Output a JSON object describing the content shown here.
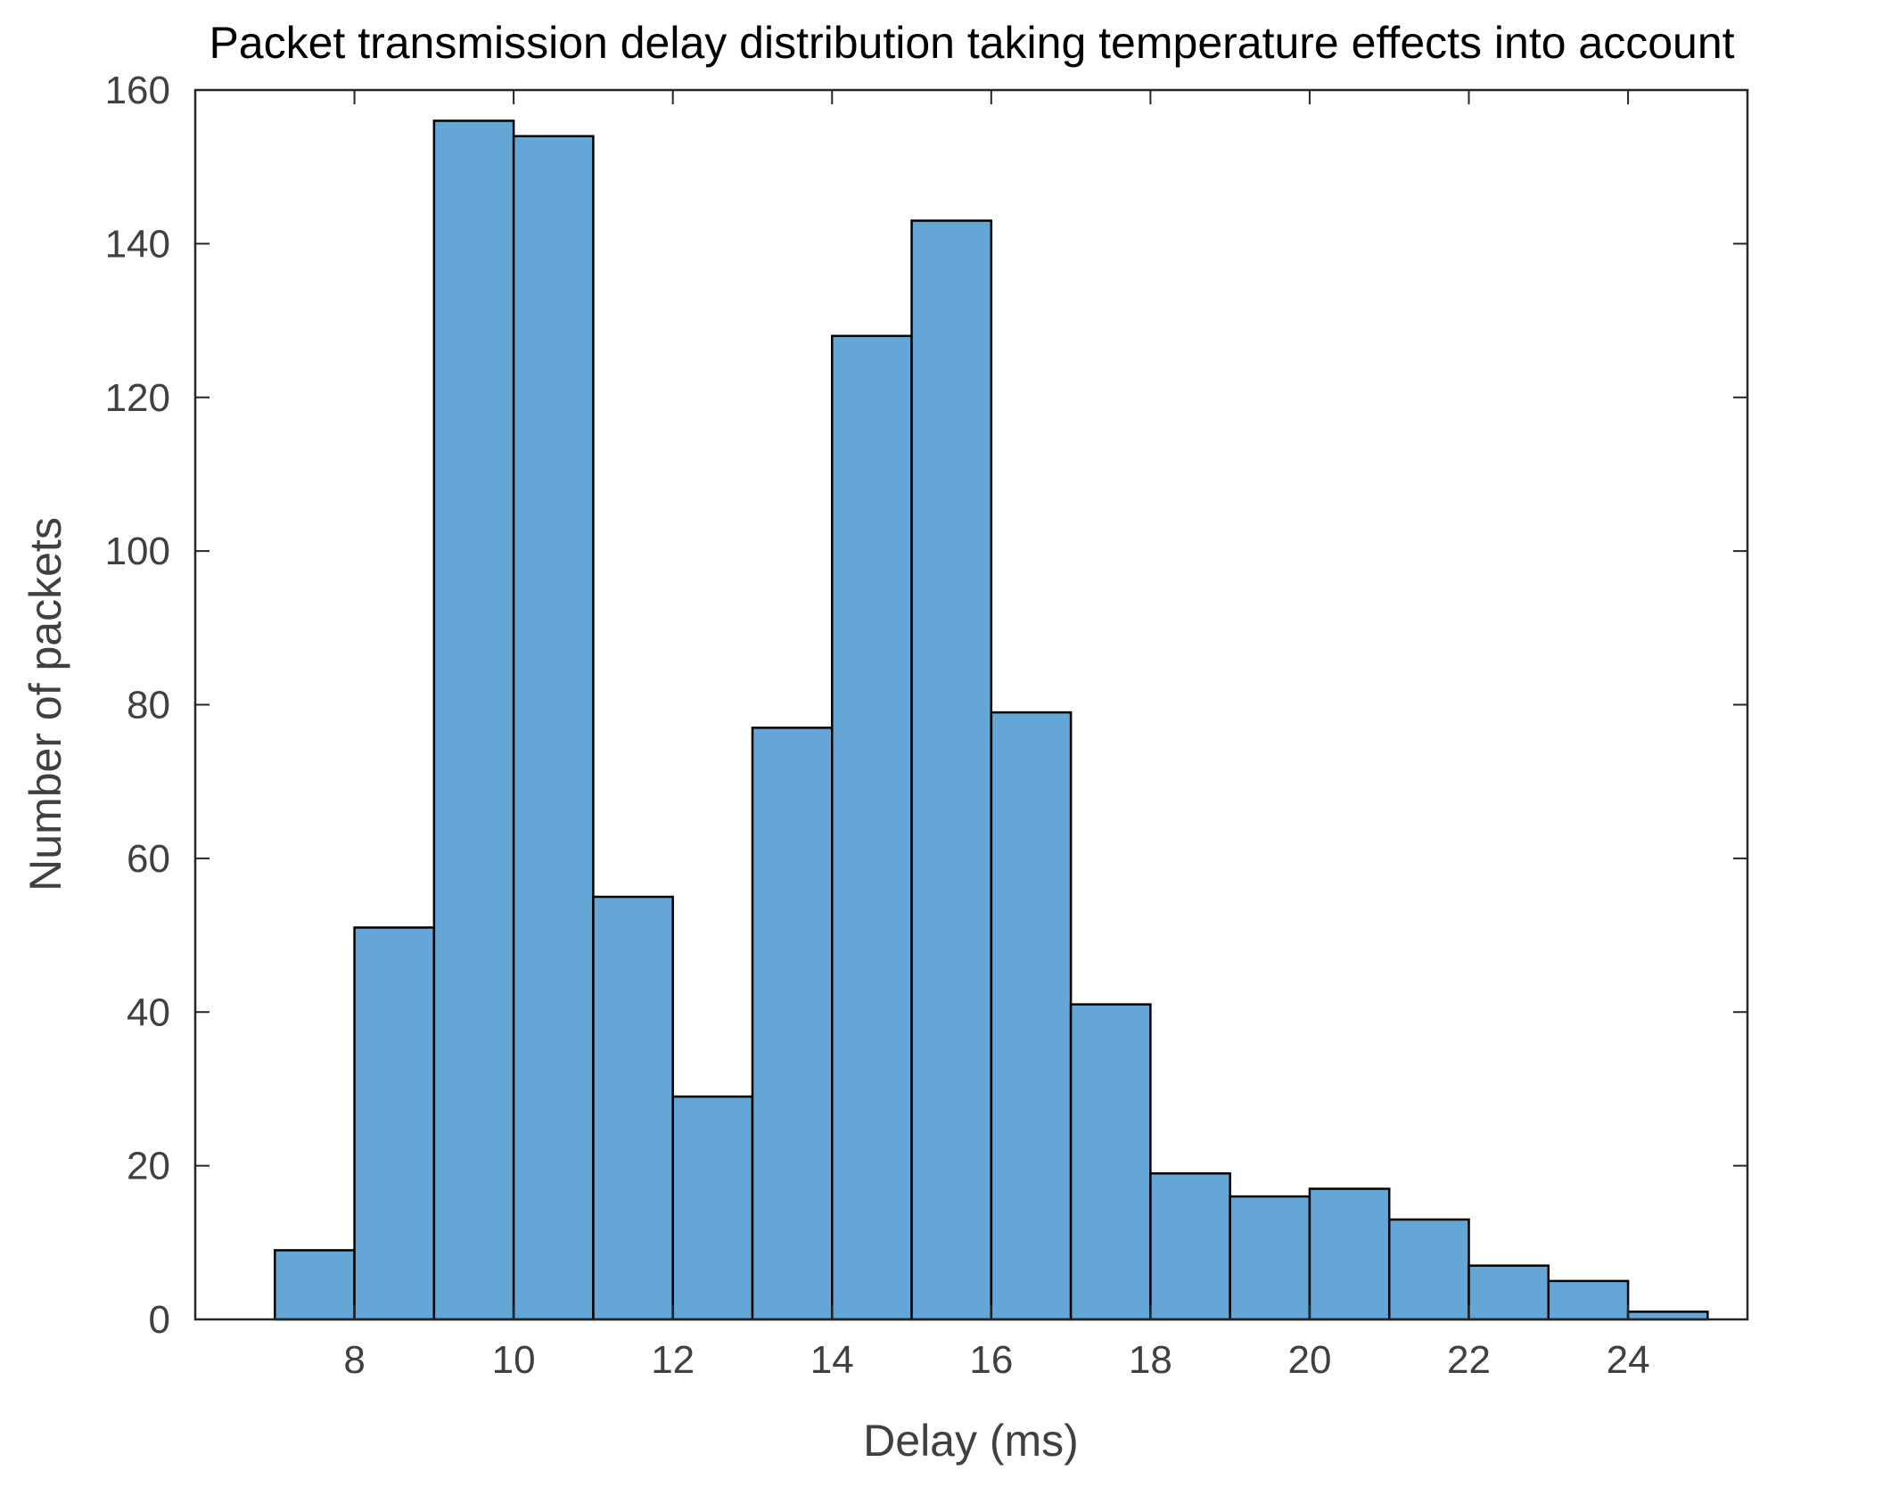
{
  "chart_data": {
    "type": "histogram",
    "title": "Packet transmission delay distribution taking temperature effects into account",
    "xlabel": "Delay (ms)",
    "ylabel": "Number of packets",
    "xlim": [
      6,
      25.5
    ],
    "ylim": [
      0,
      160
    ],
    "xticks": [
      8,
      10,
      12,
      14,
      16,
      18,
      20,
      22,
      24
    ],
    "yticks": [
      0,
      20,
      40,
      60,
      80,
      100,
      120,
      140,
      160
    ],
    "bin_edges": [
      7,
      8,
      9,
      10,
      11,
      12,
      13,
      14,
      15,
      16,
      17,
      18,
      19,
      20,
      21,
      22,
      23,
      24,
      25
    ],
    "values": [
      9,
      51,
      156,
      154,
      55,
      29,
      77,
      128,
      143,
      79,
      41,
      19,
      16,
      17,
      13,
      7,
      5,
      1
    ],
    "bar_color": "#64a7d7",
    "edge_color": "#000000",
    "grid": false,
    "box": true
  }
}
